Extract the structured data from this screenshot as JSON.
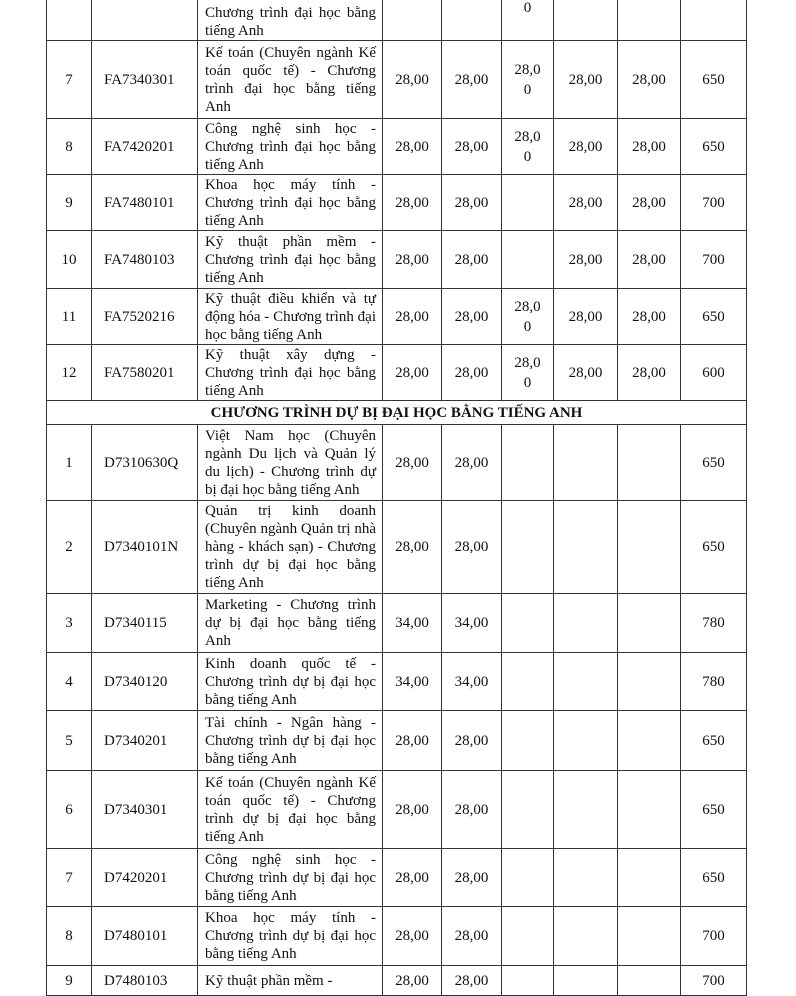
{
  "top_partial": {
    "name": "Chương trình đại học bằng tiếng Anh",
    "c5": "0"
  },
  "rows_a": [
    {
      "stt": "7",
      "code": "FA7340301",
      "name": "Kế toán (Chuyên ngành Kế toán quốc tế) - Chương trình đại học bằng tiếng Anh",
      "c1": "28,00",
      "c2": "28,00",
      "c3": "28,00",
      "c4": "28,00",
      "c5": "28,00",
      "c6": "650"
    },
    {
      "stt": "8",
      "code": "FA7420201",
      "name": "Công nghệ sinh học - Chương trình đại học bằng tiếng Anh",
      "c1": "28,00",
      "c2": "28,00",
      "c3": "28,00",
      "c4": "28,00",
      "c5": "28,00",
      "c6": "650"
    },
    {
      "stt": "9",
      "code": "FA7480101",
      "name": "Khoa học máy tính - Chương trình đại học bằng tiếng Anh",
      "c1": "28,00",
      "c2": "28,00",
      "c3": "",
      "c4": "28,00",
      "c5": "28,00",
      "c6": "700"
    },
    {
      "stt": "10",
      "code": "FA7480103",
      "name": "Kỹ thuật phần mềm - Chương trình đại học bằng tiếng Anh",
      "c1": "28,00",
      "c2": "28,00",
      "c3": "",
      "c4": "28,00",
      "c5": "28,00",
      "c6": "700"
    },
    {
      "stt": "11",
      "code": "FA7520216",
      "name": "Kỹ thuật điều khiển và tự động hóa - Chương trình đại học bằng tiếng Anh",
      "c1": "28,00",
      "c2": "28,00",
      "c3": "28,00",
      "c4": "28,00",
      "c5": "28,00",
      "c6": "650"
    },
    {
      "stt": "12",
      "code": "FA7580201",
      "name": "Kỹ thuật xây dựng - Chương trình đại học bằng tiếng Anh",
      "c1": "28,00",
      "c2": "28,00",
      "c3": "28,00",
      "c4": "28,00",
      "c5": "28,00",
      "c6": "600"
    }
  ],
  "section_title": "CHƯƠNG TRÌNH DỰ BỊ ĐẠI HỌC BẰNG TIẾNG ANH",
  "rows_b": [
    {
      "stt": "1",
      "code": "D7310630Q",
      "name": "Việt Nam học (Chuyên ngành Du lịch và Quản lý du lịch) - Chương trình dự bị đại học bằng tiếng Anh",
      "c1": "28,00",
      "c2": "28,00",
      "c6": "650"
    },
    {
      "stt": "2",
      "code": "D7340101N",
      "name": "Quản trị kinh doanh (Chuyên ngành Quản trị nhà hàng - khách sạn) - Chương trình dự bị đại học bằng tiếng Anh",
      "c1": "28,00",
      "c2": "28,00",
      "c6": "650"
    },
    {
      "stt": "3",
      "code": "D7340115",
      "name": "Marketing - Chương trình dự bị đại học bằng tiếng Anh",
      "c1": "34,00",
      "c2": "34,00",
      "c6": "780"
    },
    {
      "stt": "4",
      "code": "D7340120",
      "name": "Kinh doanh quốc tế - Chương trình dự bị đại học bằng tiếng Anh",
      "c1": "34,00",
      "c2": "34,00",
      "c6": "780"
    },
    {
      "stt": "5",
      "code": "D7340201",
      "name": "Tài chính - Ngân hàng - Chương trình dự bị đại học bằng tiếng Anh",
      "c1": "28,00",
      "c2": "28,00",
      "c6": "650"
    },
    {
      "stt": "6",
      "code": "D7340301",
      "name": "Kế toán (Chuyên ngành Kế toán quốc tế) - Chương trình dự bị đại học bằng tiếng Anh",
      "c1": "28,00",
      "c2": "28,00",
      "c6": "650"
    },
    {
      "stt": "7",
      "code": "D7420201",
      "name": "Công nghệ sinh học - Chương trình dự bị đại học bằng tiếng Anh",
      "c1": "28,00",
      "c2": "28,00",
      "c6": "650"
    },
    {
      "stt": "8",
      "code": "D7480101",
      "name": "Khoa học máy tính - Chương trình dự bị đại học bằng tiếng Anh",
      "c1": "28,00",
      "c2": "28,00",
      "c6": "700"
    },
    {
      "stt": "9",
      "code": "D7480103",
      "name": "Kỹ thuật phần mềm -",
      "c1": "28,00",
      "c2": "28,00",
      "c6": "700"
    }
  ]
}
